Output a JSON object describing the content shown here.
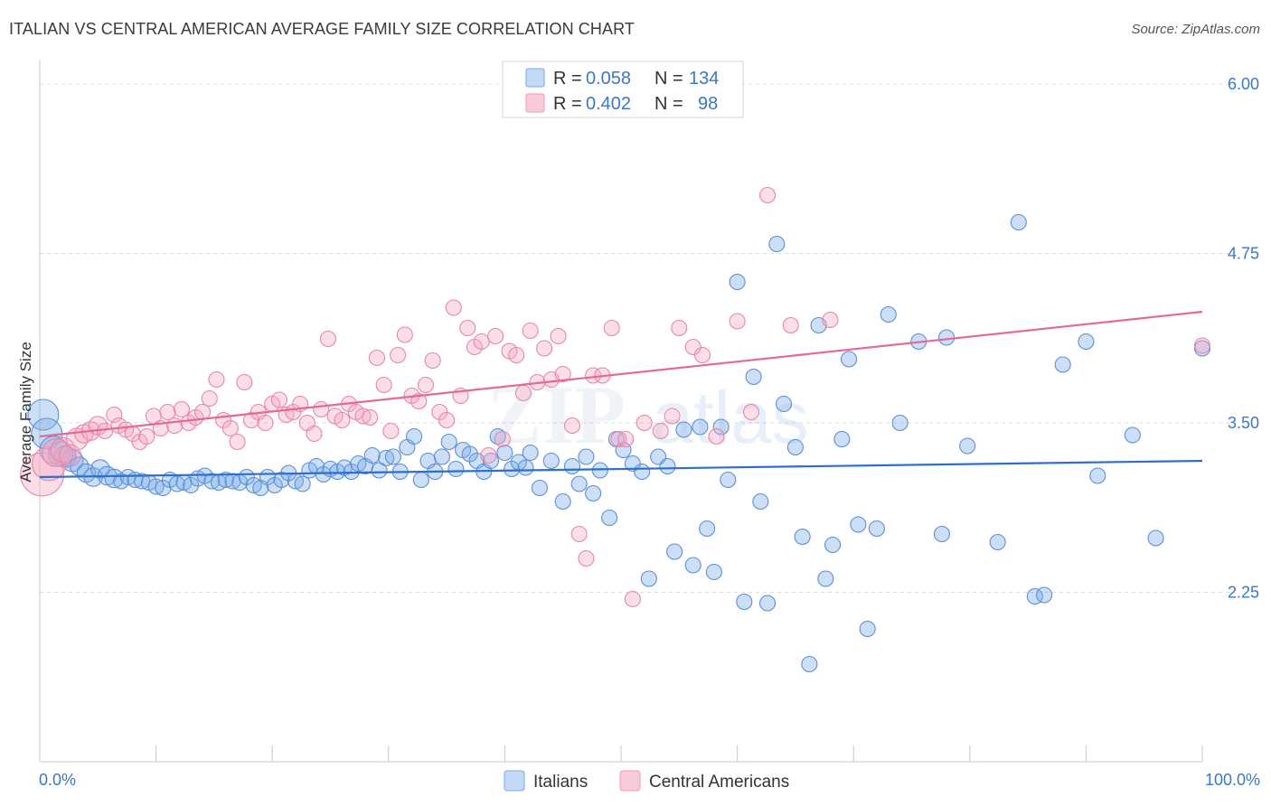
{
  "title": "ITALIAN VS CENTRAL AMERICAN AVERAGE FAMILY SIZE CORRELATION CHART",
  "source": "Source: ZipAtlas.com",
  "watermark": {
    "zip": "ZIP",
    "atlas": "atlas"
  },
  "legend_top": [
    {
      "r_label": "R = ",
      "r_value": "0.058",
      "n_label": "N = ",
      "n_value": "134",
      "color": "#7aaae8"
    },
    {
      "r_label": "R = ",
      "r_value": "0.402",
      "n_label": "N = ",
      "n_value": "98",
      "color": "#f29ab8"
    }
  ],
  "chart_data": {
    "type": "scatter",
    "ylabel": "Average Family Size",
    "xlabel": "",
    "x_tick_labels": [
      "0.0%",
      "100.0%"
    ],
    "y_ticks": [
      2.25,
      3.5,
      4.75,
      6.0
    ],
    "y_tick_labels": [
      "2.25",
      "3.50",
      "4.75",
      "6.00"
    ],
    "xlim": [
      0,
      100
    ],
    "ylim": [
      1.0,
      6.1
    ],
    "grid": true,
    "legend_position": "bottom",
    "series": [
      {
        "name": "Italians",
        "color": "#7aaae8",
        "stroke": "#5b8fd6",
        "trend": [
          [
            0,
            3.1
          ],
          [
            100,
            3.22
          ]
        ],
        "trend_color": "#2e6fce",
        "points": [
          [
            0.3,
            3.56
          ],
          [
            0.6,
            3.42
          ],
          [
            1.2,
            3.3
          ],
          [
            1.8,
            3.27
          ],
          [
            2.2,
            3.25
          ],
          [
            2.8,
            3.22
          ],
          [
            3.4,
            3.18
          ],
          [
            4.0,
            3.13
          ],
          [
            4.6,
            3.1
          ],
          [
            5.2,
            3.16
          ],
          [
            5.8,
            3.11
          ],
          [
            6.4,
            3.09
          ],
          [
            7.0,
            3.07
          ],
          [
            7.6,
            3.1
          ],
          [
            8.2,
            3.08
          ],
          [
            8.8,
            3.07
          ],
          [
            9.4,
            3.06
          ],
          [
            10.0,
            3.03
          ],
          [
            10.6,
            3.02
          ],
          [
            11.2,
            3.08
          ],
          [
            11.8,
            3.05
          ],
          [
            12.4,
            3.06
          ],
          [
            13.0,
            3.04
          ],
          [
            13.6,
            3.09
          ],
          [
            14.2,
            3.11
          ],
          [
            14.8,
            3.07
          ],
          [
            15.4,
            3.06
          ],
          [
            16.0,
            3.08
          ],
          [
            16.6,
            3.07
          ],
          [
            17.2,
            3.06
          ],
          [
            17.8,
            3.1
          ],
          [
            18.4,
            3.04
          ],
          [
            19.0,
            3.02
          ],
          [
            19.6,
            3.1
          ],
          [
            20.2,
            3.04
          ],
          [
            20.8,
            3.08
          ],
          [
            21.4,
            3.13
          ],
          [
            22.0,
            3.07
          ],
          [
            22.6,
            3.05
          ],
          [
            23.2,
            3.15
          ],
          [
            23.8,
            3.18
          ],
          [
            24.4,
            3.12
          ],
          [
            25.0,
            3.16
          ],
          [
            25.6,
            3.14
          ],
          [
            26.2,
            3.17
          ],
          [
            26.8,
            3.14
          ],
          [
            27.4,
            3.2
          ],
          [
            28.0,
            3.18
          ],
          [
            28.6,
            3.26
          ],
          [
            29.2,
            3.15
          ],
          [
            29.8,
            3.24
          ],
          [
            30.4,
            3.25
          ],
          [
            31.0,
            3.14
          ],
          [
            31.6,
            3.32
          ],
          [
            32.2,
            3.4
          ],
          [
            32.8,
            3.08
          ],
          [
            33.4,
            3.22
          ],
          [
            34.0,
            3.14
          ],
          [
            34.6,
            3.25
          ],
          [
            35.2,
            3.36
          ],
          [
            35.8,
            3.16
          ],
          [
            36.4,
            3.3
          ],
          [
            37.0,
            3.27
          ],
          [
            37.6,
            3.22
          ],
          [
            38.2,
            3.14
          ],
          [
            38.8,
            3.22
          ],
          [
            39.4,
            3.4
          ],
          [
            40.0,
            3.28
          ],
          [
            40.6,
            3.16
          ],
          [
            41.2,
            3.21
          ],
          [
            41.8,
            3.17
          ],
          [
            42.2,
            3.28
          ],
          [
            43.0,
            3.02
          ],
          [
            44.0,
            3.22
          ],
          [
            45.0,
            2.92
          ],
          [
            45.8,
            3.18
          ],
          [
            46.4,
            3.05
          ],
          [
            47.0,
            3.25
          ],
          [
            47.6,
            2.98
          ],
          [
            48.2,
            3.15
          ],
          [
            49.0,
            2.8
          ],
          [
            49.6,
            3.38
          ],
          [
            50.2,
            3.3
          ],
          [
            51.0,
            3.2
          ],
          [
            51.8,
            3.14
          ],
          [
            52.4,
            2.35
          ],
          [
            53.2,
            3.25
          ],
          [
            54.0,
            3.18
          ],
          [
            54.6,
            2.55
          ],
          [
            55.4,
            3.45
          ],
          [
            56.2,
            2.45
          ],
          [
            56.8,
            3.47
          ],
          [
            57.4,
            2.72
          ],
          [
            58.0,
            2.4
          ],
          [
            58.6,
            3.47
          ],
          [
            59.2,
            3.08
          ],
          [
            60.0,
            4.54
          ],
          [
            60.6,
            2.18
          ],
          [
            61.4,
            3.84
          ],
          [
            62.0,
            2.92
          ],
          [
            62.6,
            2.17
          ],
          [
            63.4,
            4.82
          ],
          [
            64.0,
            3.64
          ],
          [
            65.0,
            3.32
          ],
          [
            65.6,
            2.66
          ],
          [
            66.2,
            1.72
          ],
          [
            67.0,
            4.22
          ],
          [
            67.6,
            2.35
          ],
          [
            68.2,
            2.6
          ],
          [
            69.0,
            3.38
          ],
          [
            69.6,
            3.97
          ],
          [
            70.4,
            2.75
          ],
          [
            71.2,
            1.98
          ],
          [
            72.0,
            2.72
          ],
          [
            73.0,
            4.3
          ],
          [
            74.0,
            3.5
          ],
          [
            75.6,
            4.1
          ],
          [
            77.6,
            2.68
          ],
          [
            78.0,
            4.13
          ],
          [
            79.8,
            3.33
          ],
          [
            82.4,
            2.62
          ],
          [
            84.2,
            4.98
          ],
          [
            85.6,
            2.22
          ],
          [
            86.4,
            2.23
          ],
          [
            88.0,
            3.93
          ],
          [
            90.0,
            4.1
          ],
          [
            91.0,
            3.11
          ],
          [
            94.0,
            3.41
          ],
          [
            96.0,
            2.65
          ],
          [
            100.0,
            4.05
          ]
        ],
        "sizes": [
          20,
          20,
          18,
          16,
          14,
          14,
          12,
          12,
          12,
          12,
          12,
          12,
          10,
          10,
          10,
          10,
          10,
          10,
          10,
          10,
          10,
          10,
          10,
          10,
          10,
          10,
          10,
          10,
          10,
          10,
          10,
          10,
          10,
          10,
          10,
          10,
          10,
          10,
          10,
          10,
          10,
          10,
          10,
          10,
          10,
          10,
          10,
          10,
          10,
          10,
          10,
          10,
          10,
          10,
          10,
          10,
          10,
          10,
          10,
          10,
          10,
          10,
          10,
          10,
          10,
          10,
          10,
          10,
          10,
          10,
          10,
          10,
          10,
          10,
          10,
          10,
          10,
          10,
          10,
          10,
          10,
          10,
          10,
          10,
          10,
          10,
          10,
          10,
          10,
          10,
          10,
          10,
          10,
          10,
          10,
          10,
          10,
          10,
          10,
          10,
          10,
          10,
          10,
          10,
          10,
          10,
          10,
          10,
          10,
          10,
          10,
          10,
          10,
          10,
          10,
          10,
          10,
          10,
          10,
          10,
          10,
          10,
          10,
          10,
          10,
          10,
          10,
          10,
          10,
          10,
          10,
          10,
          10,
          10
        ]
      },
      {
        "name": "Central Americans",
        "color": "#f4a9c3",
        "stroke": "#e886a8",
        "trend": [
          [
            0,
            3.4
          ],
          [
            100,
            4.32
          ]
        ],
        "trend_color": "#e36a96",
        "points": [
          [
            0.2,
            3.12
          ],
          [
            0.8,
            3.2
          ],
          [
            1.4,
            3.28
          ],
          [
            2.0,
            3.3
          ],
          [
            2.6,
            3.26
          ],
          [
            3.2,
            3.38
          ],
          [
            3.8,
            3.42
          ],
          [
            4.4,
            3.44
          ],
          [
            5.0,
            3.48
          ],
          [
            5.6,
            3.44
          ],
          [
            6.4,
            3.56
          ],
          [
            6.8,
            3.48
          ],
          [
            7.4,
            3.45
          ],
          [
            8.0,
            3.42
          ],
          [
            8.6,
            3.36
          ],
          [
            9.2,
            3.4
          ],
          [
            9.8,
            3.55
          ],
          [
            10.4,
            3.46
          ],
          [
            11.0,
            3.58
          ],
          [
            11.6,
            3.48
          ],
          [
            12.2,
            3.6
          ],
          [
            12.8,
            3.5
          ],
          [
            13.4,
            3.54
          ],
          [
            14.0,
            3.58
          ],
          [
            14.6,
            3.68
          ],
          [
            15.2,
            3.82
          ],
          [
            15.8,
            3.52
          ],
          [
            16.4,
            3.46
          ],
          [
            17.0,
            3.36
          ],
          [
            17.6,
            3.8
          ],
          [
            18.2,
            3.52
          ],
          [
            18.8,
            3.58
          ],
          [
            19.4,
            3.5
          ],
          [
            20.0,
            3.64
          ],
          [
            20.6,
            3.67
          ],
          [
            21.2,
            3.56
          ],
          [
            21.8,
            3.58
          ],
          [
            22.4,
            3.64
          ],
          [
            23.0,
            3.5
          ],
          [
            23.6,
            3.42
          ],
          [
            24.2,
            3.6
          ],
          [
            24.8,
            4.12
          ],
          [
            25.4,
            3.55
          ],
          [
            26.0,
            3.52
          ],
          [
            26.6,
            3.64
          ],
          [
            27.2,
            3.58
          ],
          [
            27.8,
            3.55
          ],
          [
            28.4,
            3.54
          ],
          [
            29.0,
            3.98
          ],
          [
            29.6,
            3.78
          ],
          [
            30.2,
            3.44
          ],
          [
            30.8,
            4.0
          ],
          [
            31.4,
            4.15
          ],
          [
            32.0,
            3.7
          ],
          [
            32.6,
            3.66
          ],
          [
            33.2,
            3.78
          ],
          [
            33.8,
            3.96
          ],
          [
            34.4,
            3.58
          ],
          [
            35.0,
            3.52
          ],
          [
            35.6,
            4.35
          ],
          [
            36.2,
            3.7
          ],
          [
            36.8,
            4.2
          ],
          [
            37.4,
            4.06
          ],
          [
            38.0,
            4.1
          ],
          [
            38.6,
            3.26
          ],
          [
            39.2,
            4.14
          ],
          [
            39.8,
            3.38
          ],
          [
            40.4,
            4.03
          ],
          [
            41.0,
            4.0
          ],
          [
            41.6,
            3.72
          ],
          [
            42.2,
            4.18
          ],
          [
            42.8,
            3.8
          ],
          [
            43.4,
            4.05
          ],
          [
            44.0,
            3.82
          ],
          [
            44.6,
            4.14
          ],
          [
            45.0,
            3.86
          ],
          [
            45.8,
            3.48
          ],
          [
            46.4,
            2.68
          ],
          [
            47.0,
            2.5
          ],
          [
            47.6,
            3.85
          ],
          [
            48.4,
            3.85
          ],
          [
            49.2,
            4.2
          ],
          [
            49.8,
            3.38
          ],
          [
            50.4,
            3.38
          ],
          [
            51.0,
            2.2
          ],
          [
            52.0,
            3.5
          ],
          [
            53.4,
            3.44
          ],
          [
            54.4,
            3.55
          ],
          [
            55.0,
            4.2
          ],
          [
            56.2,
            4.06
          ],
          [
            57.0,
            4.0
          ],
          [
            58.2,
            3.4
          ],
          [
            60.0,
            4.25
          ],
          [
            61.2,
            3.58
          ],
          [
            62.6,
            5.18
          ],
          [
            64.6,
            4.22
          ],
          [
            68.0,
            4.26
          ],
          [
            100.0,
            4.07
          ]
        ],
        "sizes": [
          28,
          22,
          18,
          16,
          14,
          14,
          12,
          12,
          12,
          10,
          10,
          10,
          10,
          10,
          10,
          10,
          10,
          10,
          10,
          10,
          10,
          10,
          10,
          10,
          10,
          10,
          10,
          10,
          10,
          10,
          10,
          10,
          10,
          10,
          10,
          10,
          10,
          10,
          10,
          10,
          10,
          10,
          10,
          10,
          10,
          10,
          10,
          10,
          10,
          10,
          10,
          10,
          10,
          10,
          10,
          10,
          10,
          10,
          10,
          10,
          10,
          10,
          10,
          10,
          10,
          10,
          10,
          10,
          10,
          10,
          10,
          10,
          10,
          10,
          10,
          10,
          10,
          10,
          10,
          10,
          10,
          10,
          10,
          10,
          10,
          10,
          10,
          10,
          10,
          10,
          10,
          10,
          10,
          10,
          10,
          10,
          10,
          10
        ]
      }
    ]
  }
}
